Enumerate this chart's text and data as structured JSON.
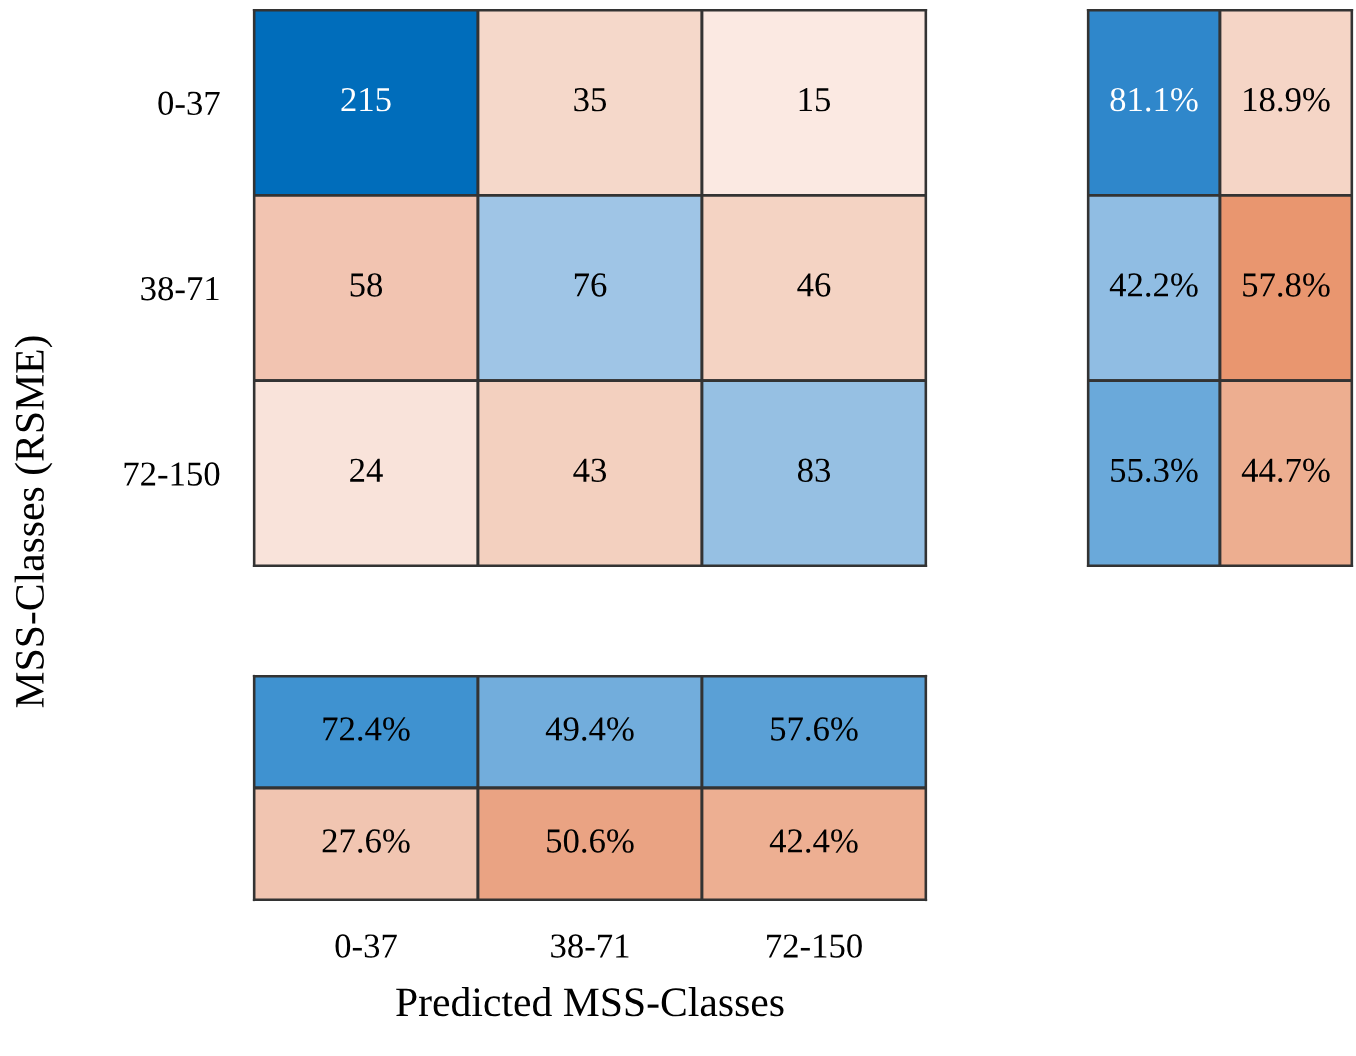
{
  "chart_data": [
    {
      "type": "heatmap",
      "ylabel": "MSS-Classes (RSME)",
      "categories": [
        null,
        null,
        null
      ],
      "y_categories": [
        "0-37",
        "38-71",
        "72-150"
      ],
      "tick_labels": "y",
      "data_labels": true,
      "cells": [
        [
          215,
          35,
          15
        ],
        [
          58,
          76,
          46
        ],
        [
          24,
          43,
          83
        ]
      ],
      "colors": [
        [
          "#006dbb",
          "#f5d8ca",
          "#fbe9e2"
        ],
        [
          "#f2c4b1",
          "#9fc5e6",
          "#f4d3c3"
        ],
        [
          "#f9e3da",
          "#f3d0bf",
          "#96c0e3"
        ]
      ]
    },
    {
      "type": "heatmap",
      "categories": [
        null,
        null
      ],
      "y_categories": [
        null,
        null,
        null
      ],
      "tick_labels": false,
      "cells": [
        [
          81.1,
          18.9
        ],
        [
          42.2,
          57.8
        ],
        [
          55.3,
          44.7
        ]
      ],
      "cell_labels": [
        [
          "81.1%",
          "18.9%"
        ],
        [
          "42.2%",
          "57.8%"
        ],
        [
          "55.3%",
          "44.7%"
        ]
      ],
      "colors": [
        [
          "#2f87cb",
          "#f5d5c6"
        ],
        [
          "#90bde3",
          "#e9966f"
        ],
        [
          "#6aa9da",
          "#edae90"
        ]
      ]
    },
    {
      "type": "heatmap",
      "xlabel": "Predicted MSS-Classes",
      "categories": [
        "0-37",
        "38-71",
        "72-150"
      ],
      "y_categories": [
        null,
        null
      ],
      "tick_labels": "x",
      "cells": [
        [
          72.4,
          49.4,
          57.6
        ],
        [
          27.6,
          50.6,
          42.4
        ]
      ],
      "cell_labels": [
        [
          "72.4%",
          "49.4%",
          "57.6%"
        ],
        [
          "27.6%",
          "50.6%",
          "42.4%"
        ]
      ],
      "colors": [
        [
          "#3f92d0",
          "#72addc",
          "#5aa0d6"
        ],
        [
          "#f1c5b1",
          "#eaa383",
          "#edaf92"
        ]
      ]
    }
  ]
}
